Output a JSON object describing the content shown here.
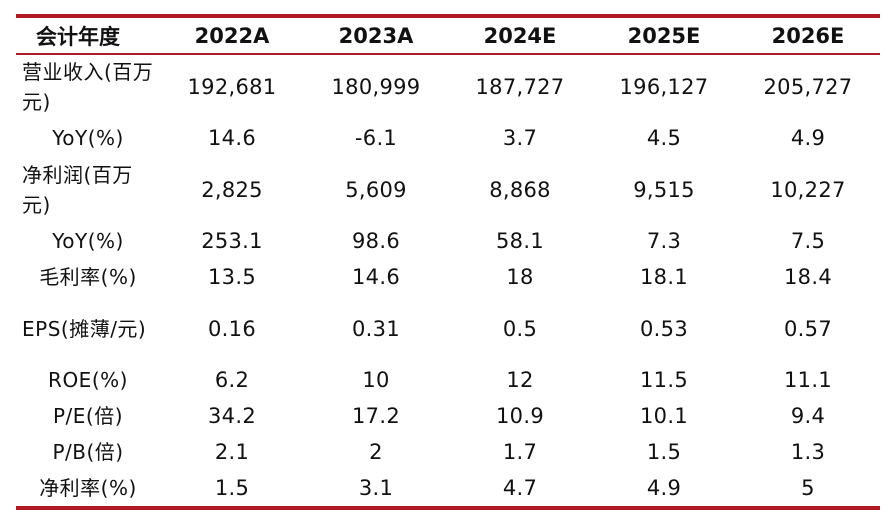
{
  "table": {
    "headers": [
      "会计年度",
      "2022A",
      "2023A",
      "2024E",
      "2025E",
      "2026E"
    ],
    "rows": [
      {
        "label": "营业收入(百万元)",
        "values": [
          "192,681",
          "180,999",
          "187,727",
          "196,127",
          "205,727"
        ]
      },
      {
        "label": "YoY(%)",
        "values": [
          "14.6",
          "-6.1",
          "3.7",
          "4.5",
          "4.9"
        ]
      },
      {
        "label": "净利润(百万元)",
        "values": [
          "2,825",
          "5,609",
          "8,868",
          "9,515",
          "10,227"
        ]
      },
      {
        "label": "YoY(%)",
        "values": [
          "253.1",
          "98.6",
          "58.1",
          "7.3",
          "7.5"
        ]
      },
      {
        "label": "毛利率(%)",
        "values": [
          "13.5",
          "14.6",
          "18",
          "18.1",
          "18.4"
        ]
      },
      {
        "label": "EPS(摊薄/元)",
        "values": [
          "0.16",
          "0.31",
          "0.5",
          "0.53",
          "0.57"
        ]
      },
      {
        "label": "ROE(%)",
        "values": [
          "6.2",
          "10",
          "12",
          "11.5",
          "11.1"
        ]
      },
      {
        "label": "P/E(倍)",
        "values": [
          "34.2",
          "17.2",
          "10.9",
          "10.1",
          "9.4"
        ]
      },
      {
        "label": "P/B(倍)",
        "values": [
          "2.1",
          "2",
          "1.7",
          "1.5",
          "1.3"
        ]
      },
      {
        "label": "净利率(%)",
        "values": [
          "1.5",
          "3.1",
          "4.7",
          "4.9",
          "5"
        ]
      }
    ]
  },
  "colors": {
    "rule": "#b01a25",
    "text": "#111111"
  }
}
